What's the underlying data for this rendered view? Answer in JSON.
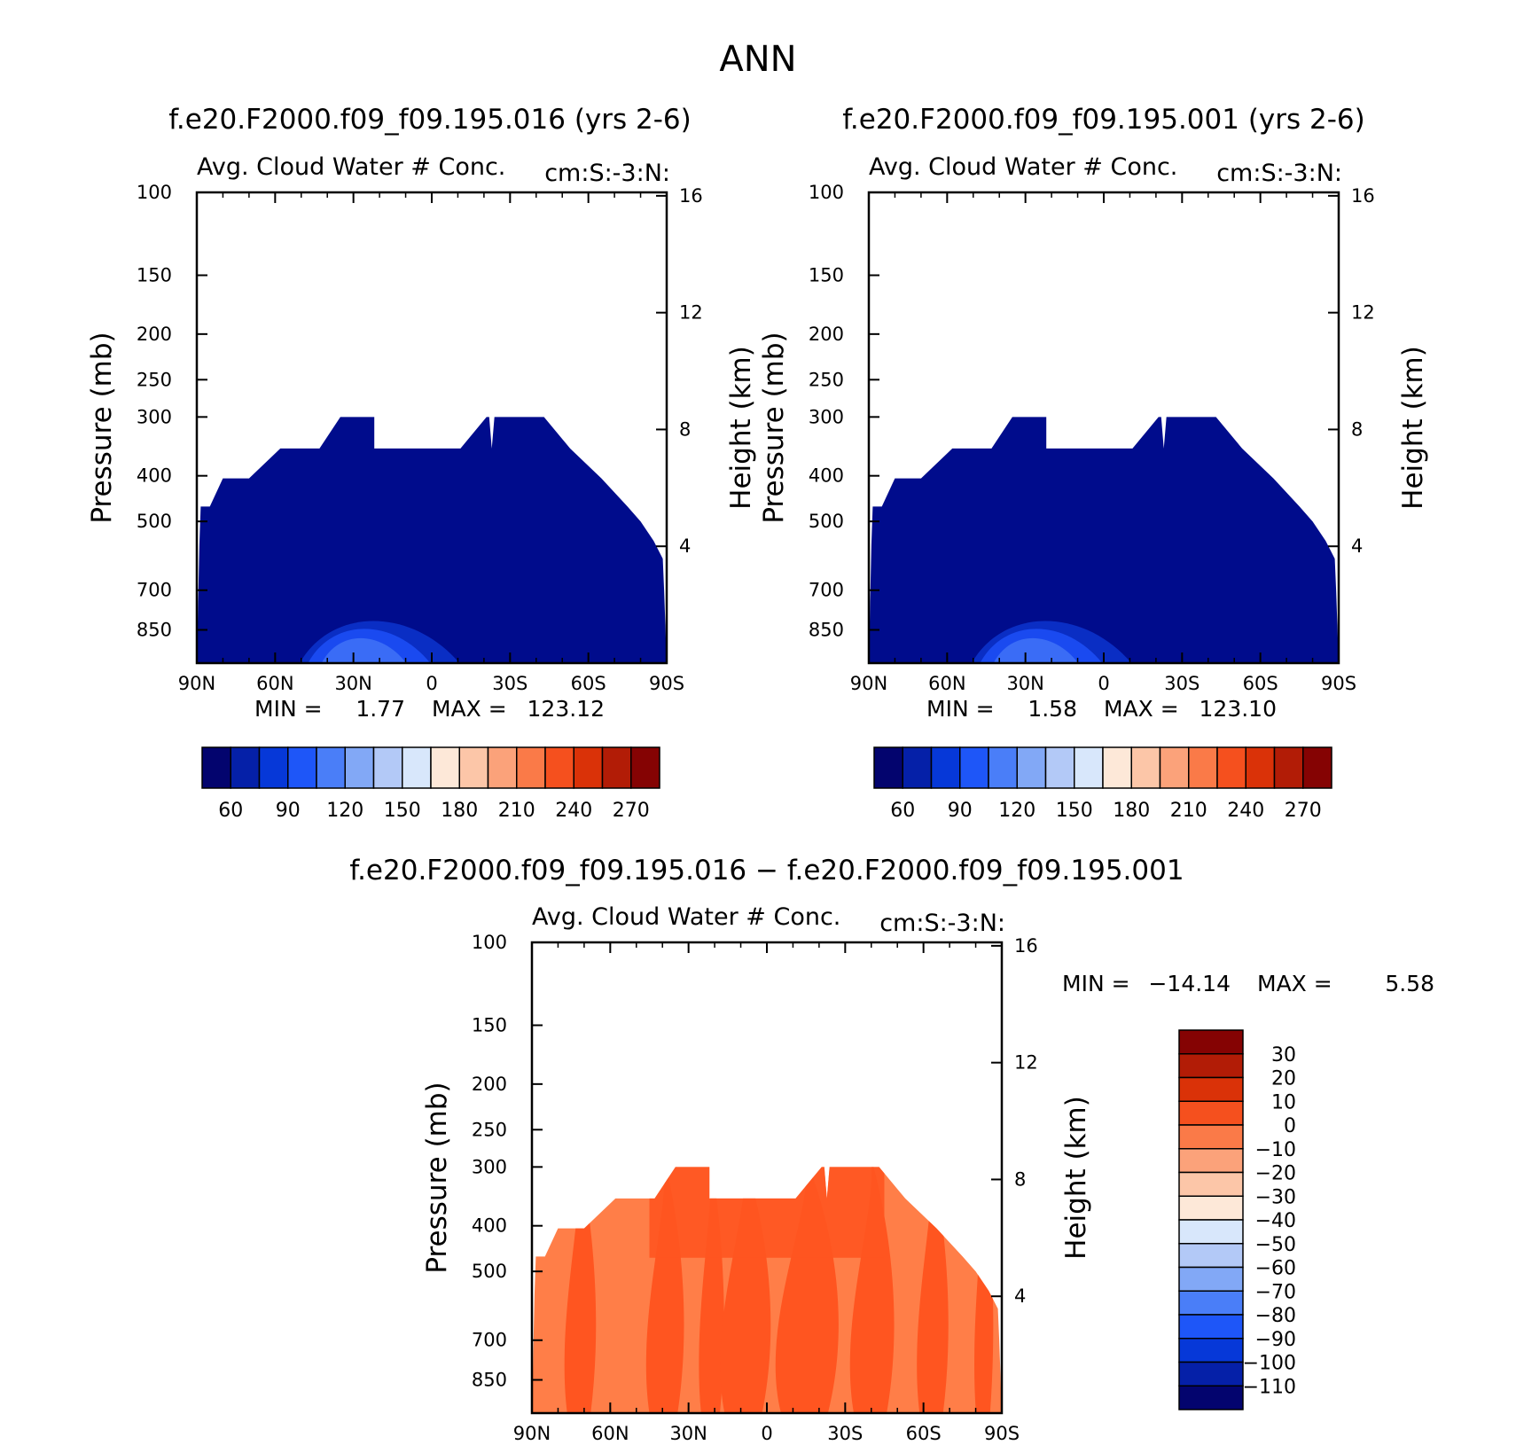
{
  "figure_title": "ANN",
  "colors": {
    "blues_fill": "#000c8c",
    "diff_dark": "#ff5520",
    "diff_light": "#ff7e48",
    "frame": "#000000"
  },
  "chart_data": [
    {
      "type": "heatmap",
      "id": "case1",
      "title": "f.e20.F2000.f09_f09.195.016 (yrs 2-6)",
      "variable": "Avg. Cloud Water # Conc.",
      "units": "cm:S:-3:N:",
      "ylabel": "Pressure (mb)",
      "ylabel_right": "Height (km)",
      "y_scale": "log",
      "ylim": [
        100,
        1000
      ],
      "y_ticks": [
        100,
        150,
        200,
        250,
        300,
        400,
        500,
        700,
        850
      ],
      "y_ticks_right": [
        16,
        12,
        8,
        4
      ],
      "x_ticks": [
        "90N",
        "60N",
        "30N",
        "0",
        "30S",
        "60S",
        "90S"
      ],
      "min_label": "MIN =",
      "min_value": "1.77",
      "max_label": "MAX =",
      "max_value": "123.12",
      "colorbar": {
        "orientation": "horizontal",
        "colors": [
          "#03046e",
          "#0520a8",
          "#0638d8",
          "#1e56f8",
          "#4a7ef8",
          "#82a8f6",
          "#b3c9f7",
          "#d8e7fb",
          "#fde8d8",
          "#fcc6a8",
          "#fba27a",
          "#fa7a48",
          "#f5501e",
          "#da3208",
          "#b21c06",
          "#850303"
        ],
        "labels": [
          "60",
          "90",
          "120",
          "150",
          "180",
          "210",
          "240",
          "270"
        ]
      },
      "contour_blobs": [
        {
          "lat": 20,
          "p_top": 760,
          "color": "#0a2ec4"
        },
        {
          "lat": 24,
          "p_top": 800,
          "color": "#1a4af0"
        },
        {
          "lat": 26,
          "p_top": 850,
          "color": "#3a6cf6"
        }
      ]
    },
    {
      "type": "heatmap",
      "id": "case2",
      "title": "f.e20.F2000.f09_f09.195.001 (yrs 2-6)",
      "variable": "Avg. Cloud Water # Conc.",
      "units": "cm:S:-3:N:",
      "ylabel": "Pressure (mb)",
      "ylabel_right": "Height (km)",
      "y_scale": "log",
      "ylim": [
        100,
        1000
      ],
      "y_ticks": [
        100,
        150,
        200,
        250,
        300,
        400,
        500,
        700,
        850
      ],
      "y_ticks_right": [
        16,
        12,
        8,
        4
      ],
      "x_ticks": [
        "90N",
        "60N",
        "30N",
        "0",
        "30S",
        "60S",
        "90S"
      ],
      "min_label": "MIN =",
      "min_value": "1.58",
      "max_label": "MAX =",
      "max_value": "123.10",
      "colorbar": {
        "orientation": "horizontal",
        "colors": [
          "#03046e",
          "#0520a8",
          "#0638d8",
          "#1e56f8",
          "#4a7ef8",
          "#82a8f6",
          "#b3c9f7",
          "#d8e7fb",
          "#fde8d8",
          "#fcc6a8",
          "#fba27a",
          "#fa7a48",
          "#f5501e",
          "#da3208",
          "#b21c06",
          "#850303"
        ],
        "labels": [
          "60",
          "90",
          "120",
          "150",
          "180",
          "210",
          "240",
          "270"
        ]
      },
      "contour_blobs": [
        {
          "lat": 20,
          "p_top": 760,
          "color": "#0a2ec4"
        },
        {
          "lat": 24,
          "p_top": 800,
          "color": "#1a4af0"
        },
        {
          "lat": 26,
          "p_top": 850,
          "color": "#3a6cf6"
        }
      ]
    },
    {
      "type": "heatmap",
      "id": "diff",
      "title": "f.e20.F2000.f09_f09.195.016 − f.e20.F2000.f09_f09.195.001",
      "variable": "Avg. Cloud Water # Conc.",
      "units": "cm:S:-3:N:",
      "ylabel": "Pressure (mb)",
      "ylabel_right": "Height (km)",
      "y_scale": "log",
      "ylim": [
        100,
        1000
      ],
      "y_ticks": [
        100,
        150,
        200,
        250,
        300,
        400,
        500,
        700,
        850
      ],
      "y_ticks_right": [
        16,
        12,
        8,
        4
      ],
      "x_ticks": [
        "90N",
        "60N",
        "30N",
        "0",
        "30S",
        "60S",
        "90S"
      ],
      "min_label": "MIN =",
      "min_value": "−14.14",
      "max_label": "MAX =",
      "max_value": "5.58",
      "colorbar": {
        "orientation": "vertical",
        "colors": [
          "#850303",
          "#b21c06",
          "#da3208",
          "#f5501e",
          "#fa7a48",
          "#fba27a",
          "#fcc6a8",
          "#fde8d8",
          "#d8e7fb",
          "#b3c9f7",
          "#82a8f6",
          "#4a7ef8",
          "#1e56f8",
          "#0638d8",
          "#0520a8",
          "#03046e"
        ],
        "labels": [
          "30",
          "20",
          "10",
          "0",
          "−10",
          "−20",
          "−30",
          "−40",
          "−50",
          "−60",
          "−70",
          "−80",
          "−90",
          "−100",
          "−110"
        ]
      }
    }
  ],
  "cloud_outline": {
    "lat": [
      90,
      89,
      88.5,
      85,
      80,
      70,
      58,
      43,
      35,
      33,
      26,
      25,
      22,
      22,
      -11,
      -21,
      -22,
      -23,
      -24,
      -43,
      -53,
      -65,
      -75,
      -80,
      -85,
      -88.5,
      -89,
      -90
    ],
    "p_top": [
      1000,
      560,
      465,
      465,
      405,
      405,
      350,
      350,
      300,
      300,
      300,
      300,
      300,
      350,
      350,
      300,
      300,
      350,
      300,
      300,
      350,
      405,
      465,
      500,
      550,
      600,
      700,
      1000
    ]
  }
}
